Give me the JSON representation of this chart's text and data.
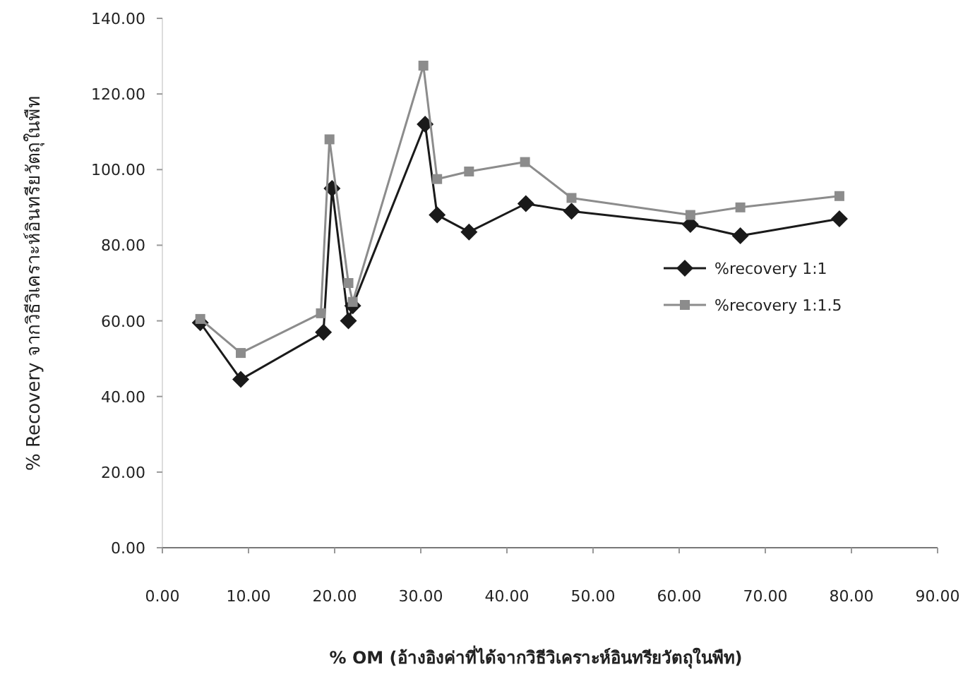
{
  "chart_data": {
    "type": "line",
    "xlabel": "% OM (อ้างอิงค่าที่ได้จากวิธีวิเคราะห์อินทรียวัตถุในพืท)",
    "ylabel": "% Recovery จากวิธีวิเคราะห์อินทรียวัตถุในพืท",
    "xlim": [
      0,
      90
    ],
    "ylim": [
      0,
      140
    ],
    "xticks": [
      {
        "value": 0,
        "label": "0.00"
      },
      {
        "value": 10,
        "label": "10.00"
      },
      {
        "value": 20,
        "label": "20.00"
      },
      {
        "value": 30,
        "label": "30.00"
      },
      {
        "value": 40,
        "label": "40.00"
      },
      {
        "value": 50,
        "label": "50.00"
      },
      {
        "value": 60,
        "label": "60.00"
      },
      {
        "value": 70,
        "label": "70.00"
      },
      {
        "value": 80,
        "label": "80.00"
      },
      {
        "value": 90,
        "label": "90.00"
      }
    ],
    "yticks": [
      {
        "value": 0,
        "label": "0.00"
      },
      {
        "value": 20,
        "label": "20.00"
      },
      {
        "value": 40,
        "label": "40.00"
      },
      {
        "value": 60,
        "label": "60.00"
      },
      {
        "value": 80,
        "label": "80.00"
      },
      {
        "value": 100,
        "label": "100.00"
      },
      {
        "value": 120,
        "label": "120.00"
      },
      {
        "value": 140,
        "label": "140.00"
      }
    ],
    "grid": false,
    "legend": "right",
    "series": [
      {
        "name": "%recovery 1:1",
        "color": "#1a1a1a",
        "marker": "diamond",
        "x": [
          4.4,
          9.1,
          18.7,
          19.7,
          21.6,
          22.1,
          30.5,
          31.9,
          35.6,
          42.2,
          47.5,
          61.3,
          67.1,
          78.6
        ],
        "values": [
          59.5,
          44.5,
          57,
          95,
          60,
          64,
          112,
          88,
          83.5,
          91,
          89,
          85.5,
          82.5,
          87
        ]
      },
      {
        "name": "%recovery 1:1.5",
        "color": "#8c8c8c",
        "marker": "square",
        "x": [
          4.4,
          9.1,
          18.4,
          19.4,
          21.6,
          22.1,
          30.3,
          31.9,
          35.6,
          42.1,
          47.5,
          61.3,
          67.1,
          78.6
        ],
        "values": [
          60.5,
          51.5,
          62,
          108,
          70,
          65,
          127.5,
          97.5,
          99.5,
          102,
          92.5,
          88,
          90,
          93
        ]
      }
    ]
  }
}
